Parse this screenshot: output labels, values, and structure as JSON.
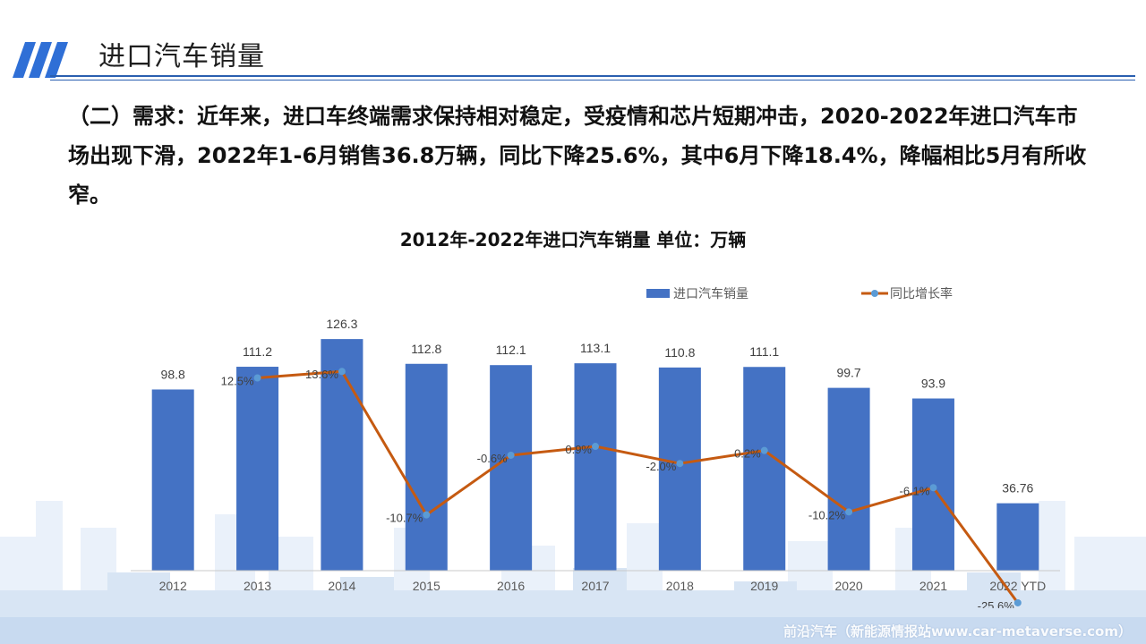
{
  "header": {
    "title": "进口汽车销量"
  },
  "summary": "（二）需求：近年来，进口车终端需求保持相对稳定，受疫情和芯片短期冲击，2020-2022年进口汽车市场出现下滑，2022年1-6月销售36.8万辆，同比下降25.6%，其中6月下降18.4%，降幅相比5月有所收窄。",
  "chart_title": "2012年-2022年进口汽车销量  单位：万辆",
  "watermark": "前沿汽车（新能源情报站www.car-metaverse.com）",
  "colors": {
    "bar": "#4472c4",
    "line": "#c55a11",
    "marker": "#5b9bd5",
    "title_lines": "#2a5fb0"
  },
  "chart_data": {
    "type": "bar",
    "categories": [
      "2012",
      "2013",
      "2014",
      "2015",
      "2016",
      "2017",
      "2018",
      "2019",
      "2020",
      "2021",
      "2022 YTD"
    ],
    "series": [
      {
        "name": "进口汽车销量",
        "type": "bar",
        "values": [
          98.8,
          111.2,
          126.3,
          112.8,
          112.1,
          113.1,
          110.8,
          111.1,
          99.7,
          93.9,
          36.76
        ],
        "labels": [
          "98.8",
          "111.2",
          "126.3",
          "112.8",
          "112.1",
          "113.1",
          "110.8",
          "111.1",
          "99.7",
          "93.9",
          "36.76"
        ]
      },
      {
        "name": "同比增长率",
        "type": "line",
        "values": [
          null,
          12.5,
          13.6,
          -10.7,
          -0.6,
          0.9,
          -2.0,
          0.2,
          -10.2,
          -6.1,
          -25.6
        ],
        "labels": [
          "",
          "12.5%",
          "13.6%",
          "-10.7%",
          "-0.6%",
          "0.9%",
          "-2.0%",
          "0.2%",
          "-10.2%",
          "-6.1%",
          "-25.6%"
        ]
      }
    ],
    "legend_position": "top-right",
    "gridlines": false
  }
}
